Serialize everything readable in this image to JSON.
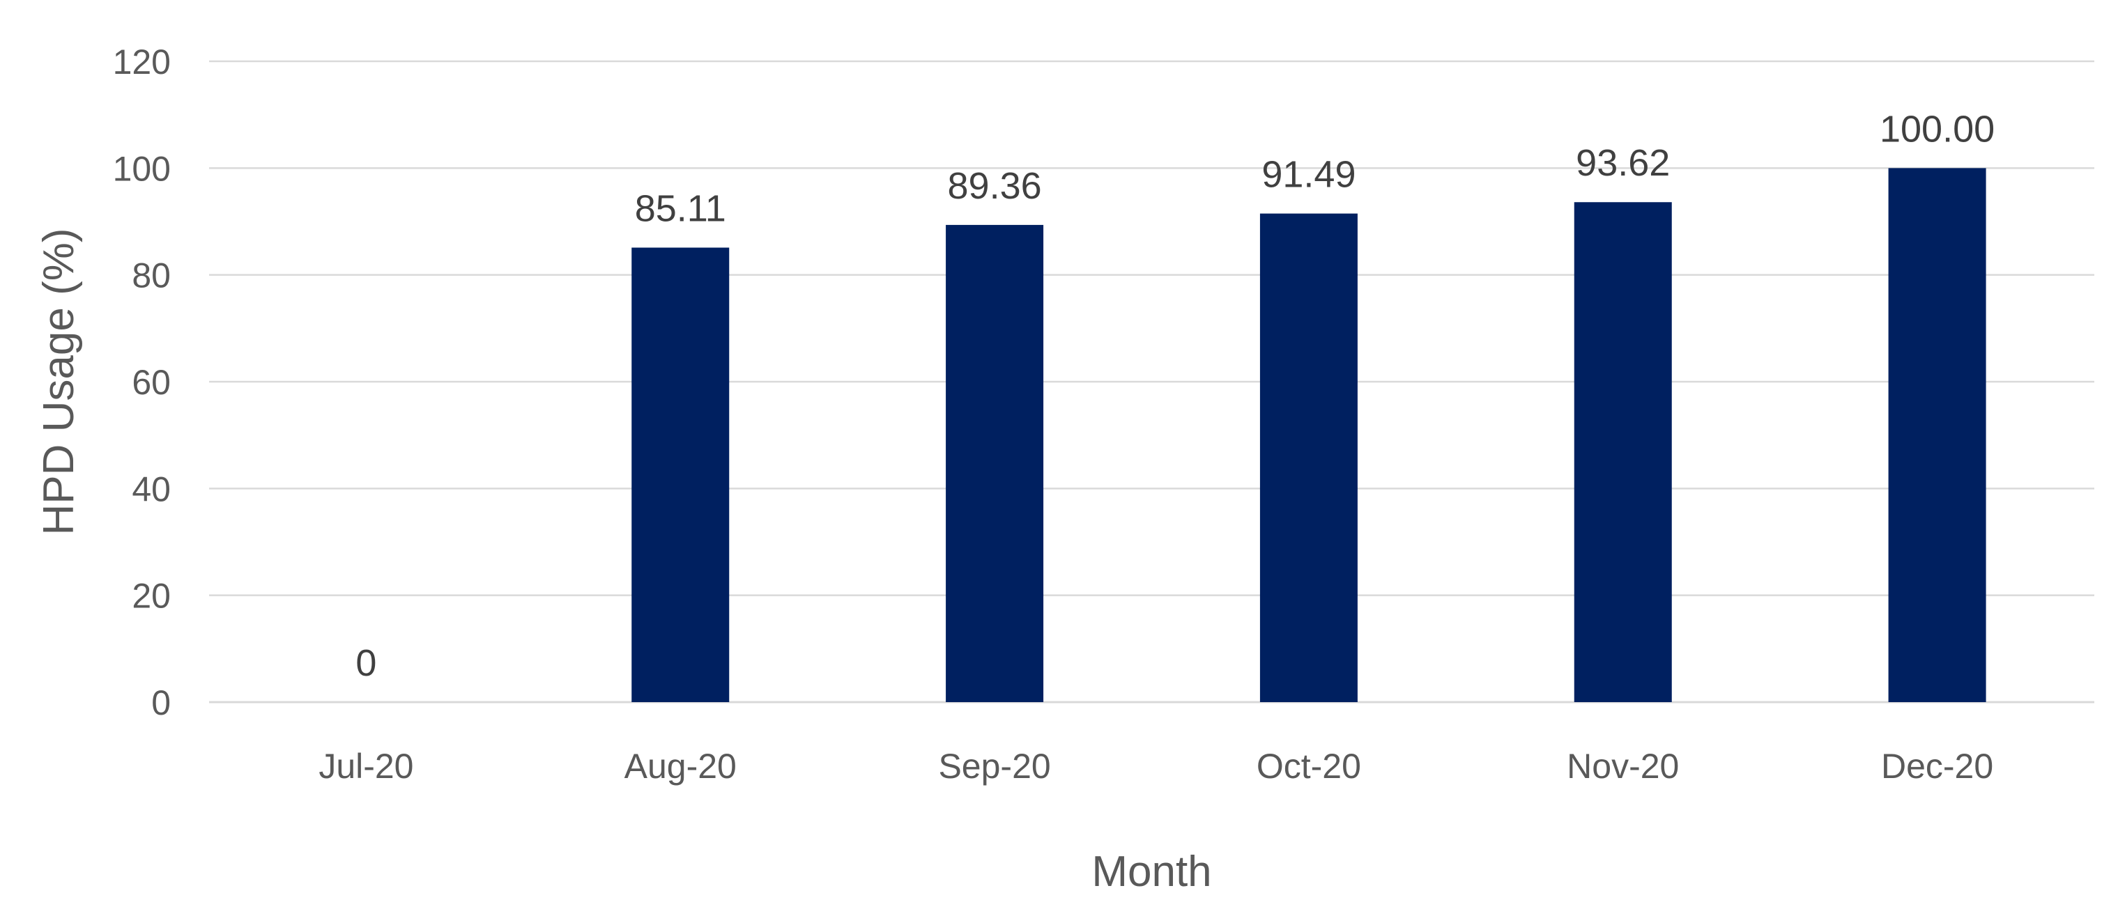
{
  "chart_data": {
    "type": "bar",
    "title": "",
    "xlabel": "Month",
    "ylabel": "HPD Usage (%)",
    "categories": [
      "Jul-20",
      "Aug-20",
      "Sep-20",
      "Oct-20",
      "Nov-20",
      "Dec-20"
    ],
    "values": [
      0,
      85.11,
      89.36,
      91.49,
      93.62,
      100.0
    ],
    "data_labels": [
      "0",
      "85.11",
      "89.36",
      "91.49",
      "93.62",
      "100.00"
    ],
    "ylim": [
      0,
      120
    ],
    "yticks": [
      0,
      20,
      40,
      60,
      80,
      100,
      120
    ],
    "grid": true,
    "legend": "none",
    "bar_color": "#002060",
    "gridline_color": "#d9d9d9",
    "text_color": "#595959"
  }
}
